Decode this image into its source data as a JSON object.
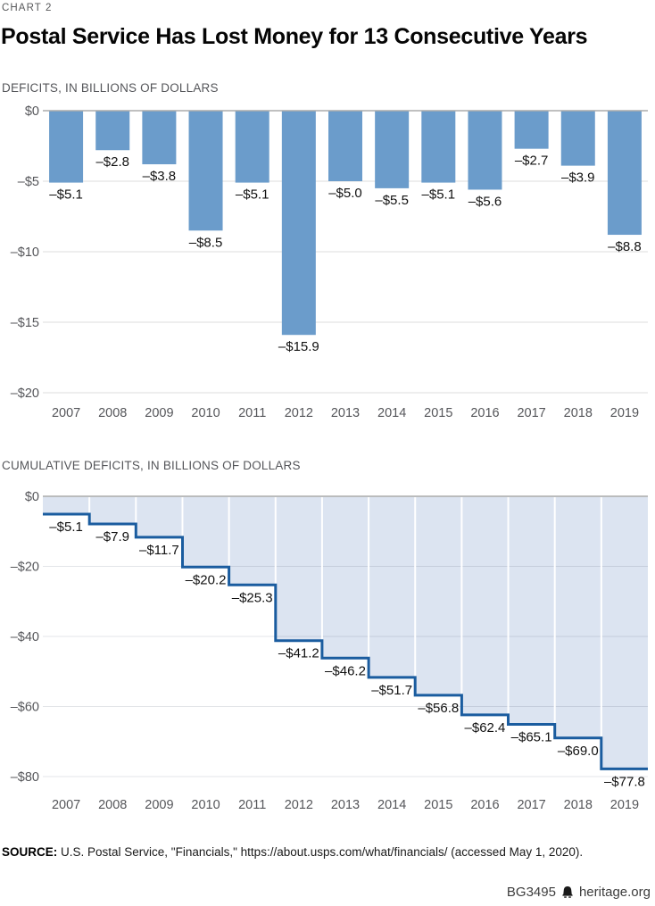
{
  "page": {
    "kicker": "CHART 2",
    "title": "Postal Service Has Lost Money for 13 Consecutive Years",
    "source_label": "SOURCE:",
    "source_text": " U.S. Postal Service, \"Financials,\" https://about.usps.com/what/financials/ (accessed May 1, 2020).",
    "footer_id": "BG3495",
    "footer_site": "heritage.org"
  },
  "colors": {
    "bar": "#6B9CCB",
    "step_line": "#1A5C9F",
    "area_fill": "#DCE4F1",
    "grid": "#DEDEDE",
    "zero_line": "#ABABAB",
    "tick_text": "#55565a",
    "value_text": "#111111"
  },
  "chart_data": [
    {
      "type": "bar",
      "title": "DEFICITS, IN BILLIONS OF DOLLARS",
      "categories": [
        "2007",
        "2008",
        "2009",
        "2010",
        "2011",
        "2012",
        "2013",
        "2014",
        "2015",
        "2016",
        "2017",
        "2018",
        "2019"
      ],
      "values": [
        -5.1,
        -2.8,
        -3.8,
        -8.5,
        -5.1,
        -15.9,
        -5.0,
        -5.5,
        -5.1,
        -5.6,
        -2.7,
        -3.9,
        -8.8
      ],
      "value_labels": [
        "–$5.1",
        "–$2.8",
        "–$3.8",
        "–$8.5",
        "–$5.1",
        "–$15.9",
        "–$5.0",
        "–$5.5",
        "–$5.1",
        "–$5.6",
        "–$2.7",
        "–$3.9",
        "–$8.8"
      ],
      "yticks": [
        0,
        -5,
        -10,
        -15,
        -20
      ],
      "ytick_labels": [
        "$0",
        "–$5",
        "–$10",
        "–$15",
        "–$20"
      ],
      "ylim": [
        -20,
        0
      ],
      "xlabel": "",
      "ylabel": "",
      "grid": true,
      "legend": "none"
    },
    {
      "type": "area",
      "subtype": "step",
      "title": "CUMULATIVE DEFICITS, IN BILLIONS OF DOLLARS",
      "categories": [
        "2007",
        "2008",
        "2009",
        "2010",
        "2011",
        "2012",
        "2013",
        "2014",
        "2015",
        "2016",
        "2017",
        "2018",
        "2019"
      ],
      "values": [
        -5.1,
        -7.9,
        -11.7,
        -20.2,
        -25.3,
        -41.2,
        -46.2,
        -51.7,
        -56.8,
        -62.4,
        -65.1,
        -69.0,
        -77.8
      ],
      "value_labels": [
        "–$5.1",
        "–$7.9",
        "–$11.7",
        "–$20.2",
        "–$25.3",
        "–$41.2",
        "–$46.2",
        "–$51.7",
        "–$56.8",
        "–$62.4",
        "–$65.1",
        "–$69.0",
        "–$77.8"
      ],
      "yticks": [
        0,
        -20,
        -40,
        -60,
        -80
      ],
      "ytick_labels": [
        "$0",
        "–$20",
        "–$40",
        "–$60",
        "–$80"
      ],
      "ylim": [
        -80,
        0
      ],
      "xlabel": "",
      "ylabel": "",
      "grid": true,
      "legend": "none"
    }
  ]
}
